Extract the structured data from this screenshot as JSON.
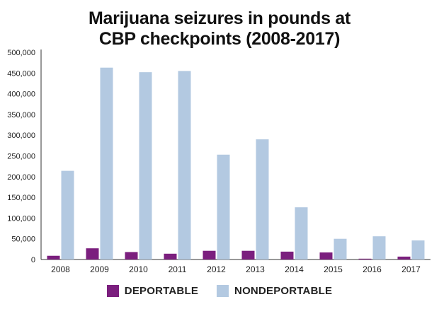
{
  "chart_data": {
    "type": "bar",
    "title_lines": [
      "Marijuana seizures in pounds at",
      "CBP checkpoints (2008-2017)"
    ],
    "xlabel": "",
    "ylabel": "",
    "ylim": [
      0,
      500000
    ],
    "yticks": [
      0,
      50000,
      100000,
      150000,
      200000,
      250000,
      300000,
      350000,
      400000,
      450000,
      500000
    ],
    "ytick_labels": [
      "0",
      "50,000",
      "100,000",
      "150,000",
      "200,000",
      "250,000",
      "300,000",
      "350,000",
      "400,000",
      "450,000",
      "500,000"
    ],
    "categories": [
      "2008",
      "2009",
      "2010",
      "2011",
      "2012",
      "2013",
      "2014",
      "2015",
      "2016",
      "2017"
    ],
    "series": [
      {
        "name": "DEPORTABLE",
        "color": "#7b1f7e",
        "values": [
          9000,
          27000,
          18000,
          14000,
          21000,
          21000,
          19000,
          17000,
          2000,
          7000
        ]
      },
      {
        "name": "NONDEPORTABLE",
        "color": "#b3c9e1",
        "values": [
          214000,
          463000,
          452000,
          455000,
          253000,
          290000,
          126000,
          50000,
          56000,
          46000
        ]
      }
    ],
    "grid": false,
    "legend_position": "bottom-center"
  }
}
